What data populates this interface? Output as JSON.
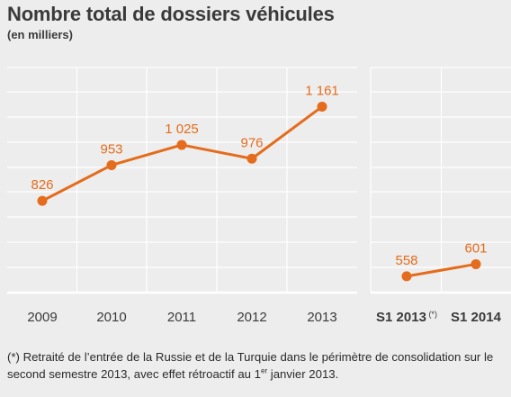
{
  "header": {
    "title": "Nombre total de dossiers véhicules",
    "subtitle": "(en milliers)"
  },
  "chart_data": [
    {
      "type": "line",
      "x": [
        "2009",
        "2010",
        "2011",
        "2012",
        "2013"
      ],
      "series": [
        {
          "values": [
            826,
            953,
            1025,
            976,
            1161
          ],
          "labels": [
            "826",
            "953",
            "1 025",
            "976",
            "1 161"
          ]
        }
      ],
      "ylim": [
        500,
        1300
      ],
      "grid": true
    },
    {
      "type": "line",
      "x": [
        "S1 2013",
        "S1 2014"
      ],
      "x_markers": [
        "(*)",
        ""
      ],
      "series": [
        {
          "values": [
            558,
            601
          ],
          "labels": [
            "558",
            "601"
          ]
        }
      ],
      "ylim": [
        500,
        1300
      ],
      "grid": true
    }
  ],
  "colors": {
    "line": "#e46c1c",
    "label": "#e46c1c",
    "grid": "#ffffff",
    "background": "#ededed",
    "axis": "#ffffff"
  },
  "footnote": {
    "part1": "(*) Retraité de l’entrée de la Russie et de la Turquie dans le périmètre de consolidation sur le second semestre 2013, avec effet rétroactif au 1",
    "sup": "er",
    "part2": " janvier 2013."
  }
}
